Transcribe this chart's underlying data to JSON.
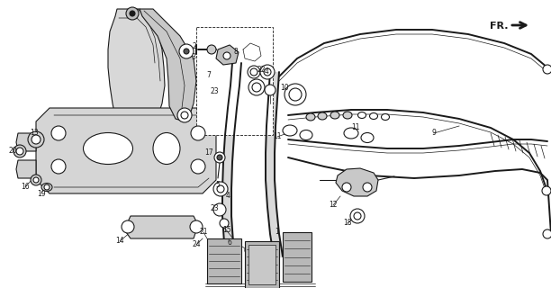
{
  "bg_color": "#ffffff",
  "line_color": "#1a1a1a",
  "fig_width": 6.12,
  "fig_height": 3.2,
  "dpi": 100,
  "fr_label": "FR."
}
